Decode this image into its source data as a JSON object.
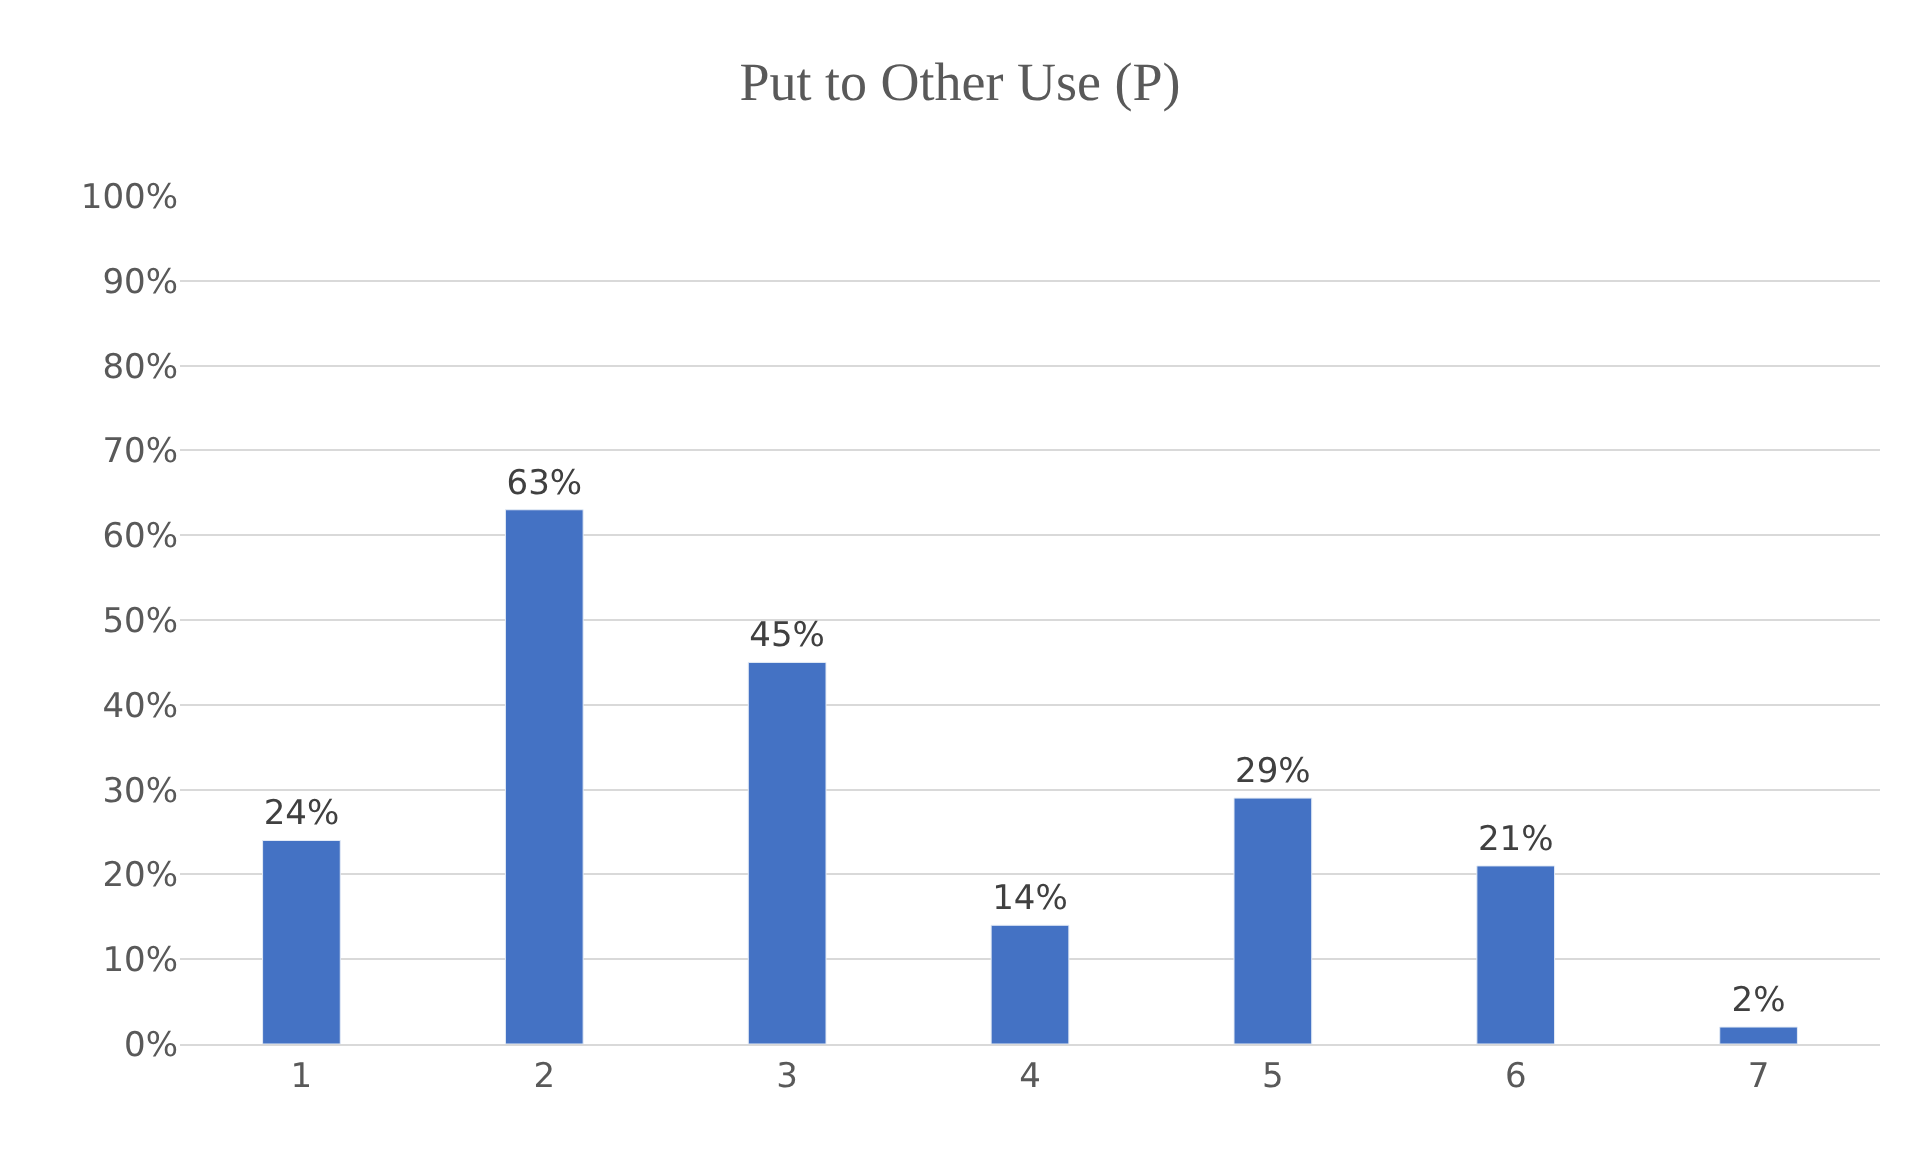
{
  "chart_data": {
    "type": "bar",
    "title": "Put to Other Use (P)",
    "categories": [
      "1",
      "2",
      "3",
      "4",
      "5",
      "6",
      "7"
    ],
    "values": [
      24,
      63,
      45,
      14,
      29,
      21,
      2
    ],
    "value_labels": [
      "24%",
      "63%",
      "45%",
      "14%",
      "29%",
      "21%",
      "2%"
    ],
    "color": "#4472c4",
    "ylim": [
      0,
      100
    ],
    "yticks": [
      {
        "value": 0,
        "label": "0%"
      },
      {
        "value": 10,
        "label": "10%"
      },
      {
        "value": 20,
        "label": "20%"
      },
      {
        "value": 30,
        "label": "30%"
      },
      {
        "value": 40,
        "label": "40%"
      },
      {
        "value": 50,
        "label": "50%"
      },
      {
        "value": 60,
        "label": "60%"
      },
      {
        "value": 70,
        "label": "70%"
      },
      {
        "value": 80,
        "label": "80%"
      },
      {
        "value": 90,
        "label": "90%"
      },
      {
        "value": 100,
        "label": "100%"
      }
    ],
    "grid": "y"
  }
}
